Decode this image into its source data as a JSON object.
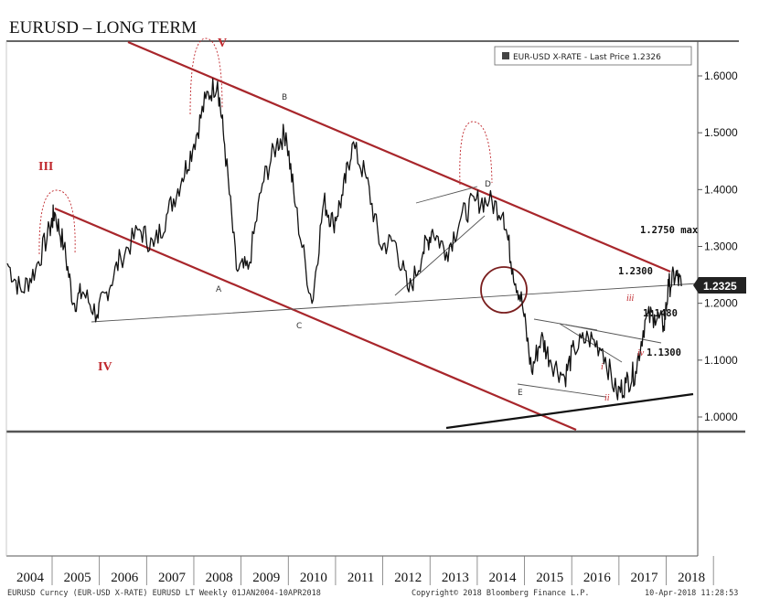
{
  "title": "EURUSD – LONG TERM",
  "legend": "EUR-USD X-RATE - Last Price 1.2326",
  "last_price_tag": "1.2325",
  "footer": {
    "left": "EURUSD Curncy (EUR-USD X-RATE) EURUSD LT  Weekly 01JAN2004-10APR2018",
    "center": "Copyright© 2018 Bloomberg Finance L.P.",
    "right": "10-Apr-2018 11:28:53"
  },
  "colors": {
    "channel": "#a8262b",
    "price": "#111111",
    "wave_label": "#c0282d"
  },
  "chart_data": {
    "type": "line",
    "series": [
      {
        "x": [
          2004.0,
          2004.3,
          2004.6,
          2004.9,
          2005.0,
          2005.2,
          2005.4,
          2005.6,
          2005.9,
          2006.1,
          2006.4,
          2006.8,
          2007.1,
          2007.4,
          2007.7,
          2007.95,
          2008.2,
          2008.45,
          2008.6,
          2008.85,
          2009.1,
          2009.4,
          2009.7,
          2009.9,
          2010.1,
          2010.45,
          2010.7,
          2010.9,
          2011.1,
          2011.3,
          2011.6,
          2011.9,
          2012.2,
          2012.5,
          2012.8,
          2013.0,
          2013.3,
          2013.6,
          2013.9,
          2014.2,
          2014.5,
          2014.7,
          2014.9,
          2015.1,
          2015.3,
          2015.5,
          2015.8,
          2016.0,
          2016.3,
          2016.6,
          2016.9,
          2017.1,
          2017.3,
          2017.5,
          2017.7,
          2017.9,
          2018.0,
          2018.15,
          2018.27
        ],
        "y": [
          1.27,
          1.22,
          1.26,
          1.33,
          1.36,
          1.3,
          1.2,
          1.22,
          1.18,
          1.22,
          1.28,
          1.33,
          1.3,
          1.36,
          1.42,
          1.48,
          1.56,
          1.59,
          1.48,
          1.26,
          1.26,
          1.41,
          1.48,
          1.5,
          1.37,
          1.2,
          1.38,
          1.34,
          1.39,
          1.48,
          1.42,
          1.3,
          1.31,
          1.22,
          1.29,
          1.33,
          1.29,
          1.35,
          1.38,
          1.38,
          1.36,
          1.26,
          1.2,
          1.08,
          1.14,
          1.1,
          1.07,
          1.12,
          1.14,
          1.12,
          1.04,
          1.06,
          1.08,
          1.17,
          1.18,
          1.16,
          1.23,
          1.25,
          1.23
        ]
      }
    ],
    "xticks": [
      "2004",
      "2005",
      "2006",
      "2007",
      "2008",
      "2009",
      "2010",
      "2011",
      "2012",
      "2013",
      "2014",
      "2015",
      "2016",
      "2017",
      "2018"
    ],
    "yticks": [
      "1.0000",
      "1.1000",
      "1.2000",
      "1.3000",
      "1.4000",
      "1.5000",
      "1.6000"
    ],
    "ylim": [
      0.975,
      1.66
    ],
    "xlim": [
      2004.0,
      2018.5
    ],
    "wave_labels": [
      "III",
      "IV",
      "V"
    ],
    "point_labels": [
      "A",
      "B",
      "C",
      "D",
      "E"
    ],
    "sub_wave_labels": [
      "i",
      "ii",
      "iii",
      "iv"
    ],
    "levels": [
      "1.2750 max",
      "1.2300",
      "1.1480",
      "1.1300"
    ]
  }
}
